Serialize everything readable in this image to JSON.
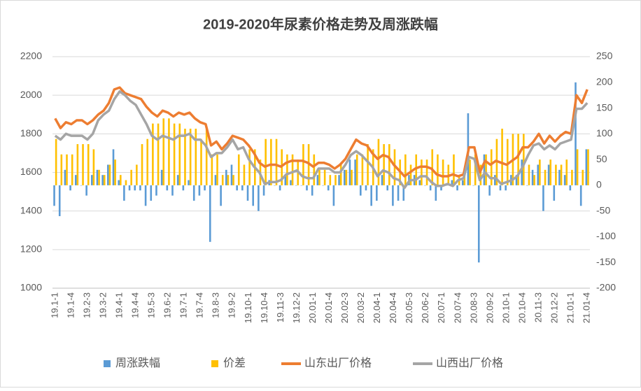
{
  "chart_data": {
    "type": "combo",
    "title": "2019-2020年尿素价格走势及周涨跌幅",
    "categories": [
      "19.1-1",
      null,
      null,
      "19.1-4",
      null,
      null,
      "19.2-3",
      null,
      null,
      "19.3-2",
      null,
      null,
      "19.4-1",
      null,
      null,
      "19.4-4",
      null,
      null,
      "19.5-3",
      null,
      null,
      "19.6-2",
      null,
      null,
      "19.7-1",
      null,
      null,
      "19.7-4",
      null,
      null,
      "19.8-3",
      null,
      null,
      "19.9-2",
      null,
      null,
      "19.10-1",
      null,
      null,
      "19.10-4",
      null,
      null,
      "19.11-3",
      null,
      null,
      "19.12-2",
      null,
      null,
      "20.01-1",
      null,
      null,
      "20.01-4",
      null,
      null,
      "20.02-3",
      null,
      null,
      "20.03-2",
      null,
      null,
      "20.04-1",
      null,
      null,
      "20.04-4",
      null,
      null,
      "20.05-3",
      null,
      null,
      "20.06-2",
      null,
      null,
      "20.07-1",
      null,
      null,
      "20.07-4",
      null,
      null,
      "20.08-3",
      null,
      null,
      "20.09-2",
      null,
      null,
      "20.10-1",
      null,
      null,
      "20.10-4",
      null,
      null,
      "20.11-3",
      null,
      null,
      "20.12-2",
      null,
      null,
      "21.01-1",
      null,
      null,
      "21.01-4"
    ],
    "series": [
      {
        "name": "周涨跌幅",
        "type": "bar",
        "axis": "y2",
        "color": "#5b9bd5",
        "values": [
          -40,
          -60,
          30,
          -10,
          20,
          0,
          -20,
          20,
          30,
          20,
          40,
          70,
          10,
          -30,
          -10,
          -10,
          -10,
          -40,
          -30,
          -20,
          30,
          -10,
          -20,
          20,
          -10,
          10,
          -30,
          -20,
          -10,
          -110,
          20,
          -40,
          30,
          40,
          -10,
          -10,
          -30,
          -40,
          -50,
          -20,
          10,
          0,
          -10,
          20,
          10,
          0,
          0,
          -10,
          -20,
          20,
          0,
          -10,
          -40,
          20,
          30,
          50,
          50,
          -20,
          -10,
          -40,
          -30,
          20,
          -10,
          -40,
          -30,
          -30,
          20,
          20,
          10,
          0,
          -10,
          -30,
          -10,
          0,
          10,
          -10,
          10,
          140,
          0,
          -150,
          60,
          -20,
          20,
          -10,
          -10,
          20,
          20,
          50,
          0,
          30,
          40,
          -50,
          40,
          -30,
          30,
          20,
          -10,
          200,
          -40,
          70
        ]
      },
      {
        "name": "价差",
        "type": "bar",
        "axis": "y2",
        "color": "#ffc000",
        "values": [
          90,
          60,
          60,
          60,
          80,
          80,
          80,
          70,
          30,
          20,
          40,
          50,
          20,
          10,
          30,
          40,
          80,
          90,
          120,
          120,
          130,
          130,
          120,
          120,
          110,
          110,
          110,
          90,
          110,
          60,
          60,
          20,
          20,
          20,
          60,
          40,
          70,
          70,
          50,
          90,
          90,
          90,
          70,
          60,
          60,
          50,
          80,
          80,
          60,
          30,
          30,
          20,
          20,
          40,
          30,
          30,
          60,
          60,
          80,
          70,
          90,
          80,
          80,
          70,
          50,
          60,
          40,
          60,
          50,
          50,
          70,
          60,
          50,
          40,
          60,
          20,
          20,
          50,
          60,
          40,
          60,
          70,
          90,
          110,
          90,
          100,
          100,
          100,
          40,
          20,
          50,
          30,
          50,
          40,
          40,
          50,
          30,
          70,
          30,
          70
        ]
      },
      {
        "name": "山东出厂价格",
        "type": "line",
        "color": "#ed7d31",
        "values": [
          1880,
          1830,
          1860,
          1850,
          1870,
          1870,
          1850,
          1870,
          1900,
          1920,
          1960,
          2030,
          2040,
          2010,
          2000,
          1990,
          1980,
          1940,
          1910,
          1890,
          1920,
          1910,
          1890,
          1910,
          1900,
          1910,
          1880,
          1860,
          1850,
          1740,
          1760,
          1720,
          1750,
          1790,
          1780,
          1770,
          1740,
          1700,
          1650,
          1630,
          1640,
          1640,
          1630,
          1650,
          1660,
          1660,
          1660,
          1650,
          1630,
          1650,
          1650,
          1640,
          1620,
          1640,
          1670,
          1720,
          1770,
          1750,
          1740,
          1700,
          1670,
          1690,
          1680,
          1640,
          1610,
          1580,
          1600,
          1620,
          1630,
          1630,
          1620,
          1590,
          1580,
          1580,
          1590,
          1580,
          1590,
          1730,
          1730,
          1600,
          1660,
          1640,
          1660,
          1650,
          1640,
          1660,
          1680,
          1730,
          1730,
          1760,
          1800,
          1750,
          1790,
          1760,
          1790,
          1810,
          1800,
          2000,
          1960,
          2030
        ]
      },
      {
        "name": "山西出厂价格",
        "type": "line",
        "color": "#a5a5a5",
        "values": [
          1790,
          1770,
          1800,
          1790,
          1790,
          1790,
          1770,
          1800,
          1870,
          1900,
          1920,
          1980,
          2020,
          2000,
          1970,
          1950,
          1900,
          1850,
          1790,
          1770,
          1790,
          1780,
          1770,
          1790,
          1790,
          1800,
          1770,
          1770,
          1740,
          1680,
          1700,
          1700,
          1730,
          1770,
          1720,
          1730,
          1670,
          1630,
          1600,
          1540,
          1550,
          1550,
          1560,
          1590,
          1600,
          1610,
          1580,
          1570,
          1570,
          1620,
          1620,
          1620,
          1600,
          1600,
          1640,
          1690,
          1710,
          1690,
          1660,
          1630,
          1580,
          1610,
          1600,
          1570,
          1560,
          1520,
          1560,
          1560,
          1580,
          1580,
          1550,
          1530,
          1530,
          1540,
          1530,
          1560,
          1570,
          1680,
          1670,
          1560,
          1600,
          1570,
          1570,
          1540,
          1550,
          1560,
          1580,
          1630,
          1690,
          1740,
          1750,
          1720,
          1740,
          1720,
          1750,
          1760,
          1770,
          1930,
          1930,
          1960
        ]
      }
    ],
    "ylim": [
      1000,
      2200
    ],
    "yticks": [
      1000,
      1200,
      1400,
      1600,
      1800,
      2000,
      2200
    ],
    "y2lim": [
      -200,
      250
    ],
    "y2ticks": [
      -200,
      -150,
      -100,
      -50,
      0,
      50,
      100,
      150,
      200,
      250
    ],
    "grid": true,
    "legend": "bottom"
  }
}
